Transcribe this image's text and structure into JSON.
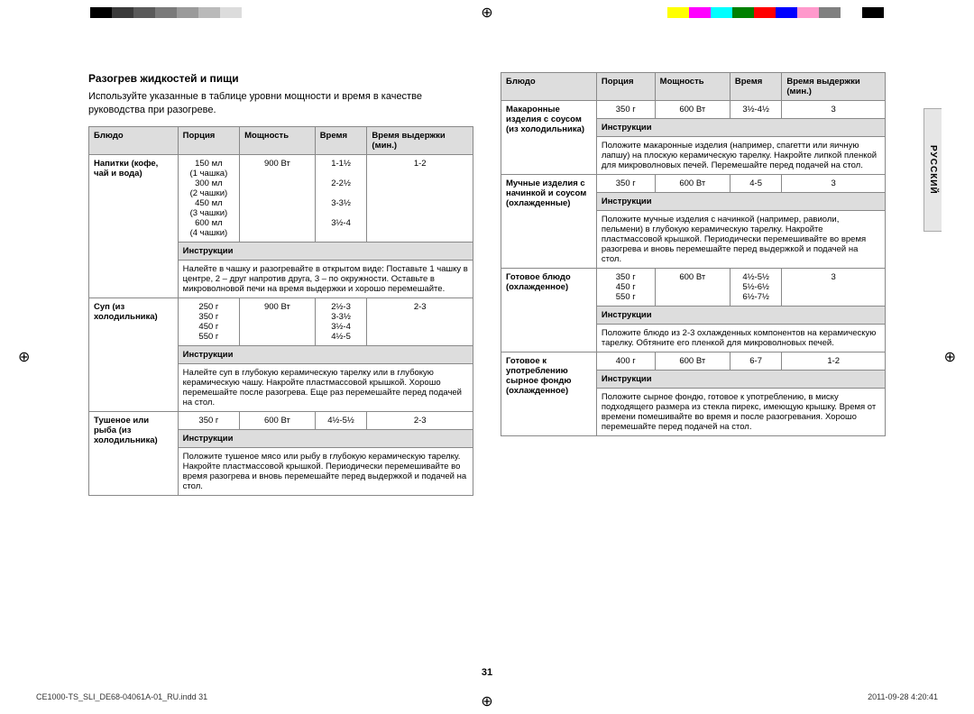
{
  "colorbars": {
    "left": [
      "#000000",
      "#3a3a3a",
      "#5a5a5a",
      "#7a7a7a",
      "#9a9a9a",
      "#bababa",
      "#dcdcdc",
      "#ffffff"
    ],
    "right": [
      "#ffff00",
      "#ff00ff",
      "#00ffff",
      "#008000",
      "#ff0000",
      "#0000ff",
      "#ff99cc",
      "#808080",
      "#ffffff",
      "#000000"
    ]
  },
  "lang_tab": "РУССКИЙ",
  "section_title": "Разогрев жидкостей и пищи",
  "intro": "Используйте указанные в таблице уровни мощности и время в качестве руководства при разогреве.",
  "headers": {
    "dish": "Блюдо",
    "portion": "Порция",
    "power": "Мощность",
    "time": "Время",
    "stand": "Время выдержки (мин.)",
    "instructions": "Инструкции"
  },
  "left_rows": [
    {
      "dish": "Напитки (кофе, чай и вода)",
      "portion": "150 мл\n(1 чашка)\n300 мл\n(2 чашки)\n450 мл\n(3 чашки)\n600 мл\n(4 чашки)",
      "power": "900 Вт",
      "time": "1-1½\n\n2-2½\n\n3-3½\n\n3½-4",
      "stand": "1-2",
      "inst": "Налейте в чашку и разогревайте в открытом виде: Поставьте 1 чашку в центре, 2 – друг напротив друга, 3 – по окружности. Оставьте в микроволновой печи на время выдержки и хорошо перемешайте."
    },
    {
      "dish": "Суп (из холодильника)",
      "portion": "250 г\n350 г\n450 г\n550 г",
      "power": "900 Вт",
      "time": "2½-3\n3-3½\n3½-4\n4½-5",
      "stand": "2-3",
      "inst": "Налейте суп в глубокую керамическую тарелку или в глубокую керамическую чашу. Накройте пластмассовой крышкой. Хорошо перемешайте после разогрева. Еще раз перемешайте перед подачей на стол."
    },
    {
      "dish": "Тушеное или рыба (из холодильника)",
      "portion": "350 г",
      "power": "600 Вт",
      "time": "4½-5½",
      "stand": "2-3",
      "inst": "Положите тушеное мясо или рыбу в глубокую керамическую тарелку. Накройте пластмассовой крышкой. Периодически перемешивайте во время разогрева и вновь перемешайте перед выдержкой и подачей на стол."
    }
  ],
  "right_rows": [
    {
      "dish": "Макаронные изделия с соусом (из холодильника)",
      "portion": "350 г",
      "power": "600 Вт",
      "time": "3½-4½",
      "stand": "3",
      "inst": "Положите макаронные изделия (например, спагетти или яичную лапшу) на плоскую керамическую тарелку. Накройте липкой пленкой для микроволновых печей. Перемешайте перед подачей на стол."
    },
    {
      "dish": "Мучные изделия с начинкой и соусом (охлажденные)",
      "portion": "350 г",
      "power": "600 Вт",
      "time": "4-5",
      "stand": "3",
      "inst": "Положите мучные изделия с начинкой (например, равиоли, пельмени) в глубокую керамическую тарелку. Накройте пластмассовой крышкой. Периодически перемешивайте во время разогрева и вновь перемешайте перед выдержкой и подачей на стол."
    },
    {
      "dish": "Готовое блюдо (охлажденное)",
      "portion": "350 г\n450 г\n550 г",
      "power": "600 Вт",
      "time": "4½-5½\n5½-6½\n6½-7½",
      "stand": "3",
      "inst": "Положите блюдо из 2-3 охлажденных компонентов на керамическую тарелку. Обтяните его пленкой для микроволновых печей."
    },
    {
      "dish": "Готовое к употреблению сырное фондю (охлажденное)",
      "portion": "400 г",
      "power": "600 Вт",
      "time": "6-7",
      "stand": "1-2",
      "inst": "Положите сырное фондю, готовое к употреблению, в миску подходящего размера из стекла пирекс, имеющую крышку. Время от времени помешивайте во время и после разогревания. Хорошо перемешайте перед подачей на стол."
    }
  ],
  "page_number": "31",
  "footer_left": "CE1000-TS_SLI_DE68-04061A-01_RU.indd   31",
  "footer_right": "2011-09-28   4:20:41"
}
